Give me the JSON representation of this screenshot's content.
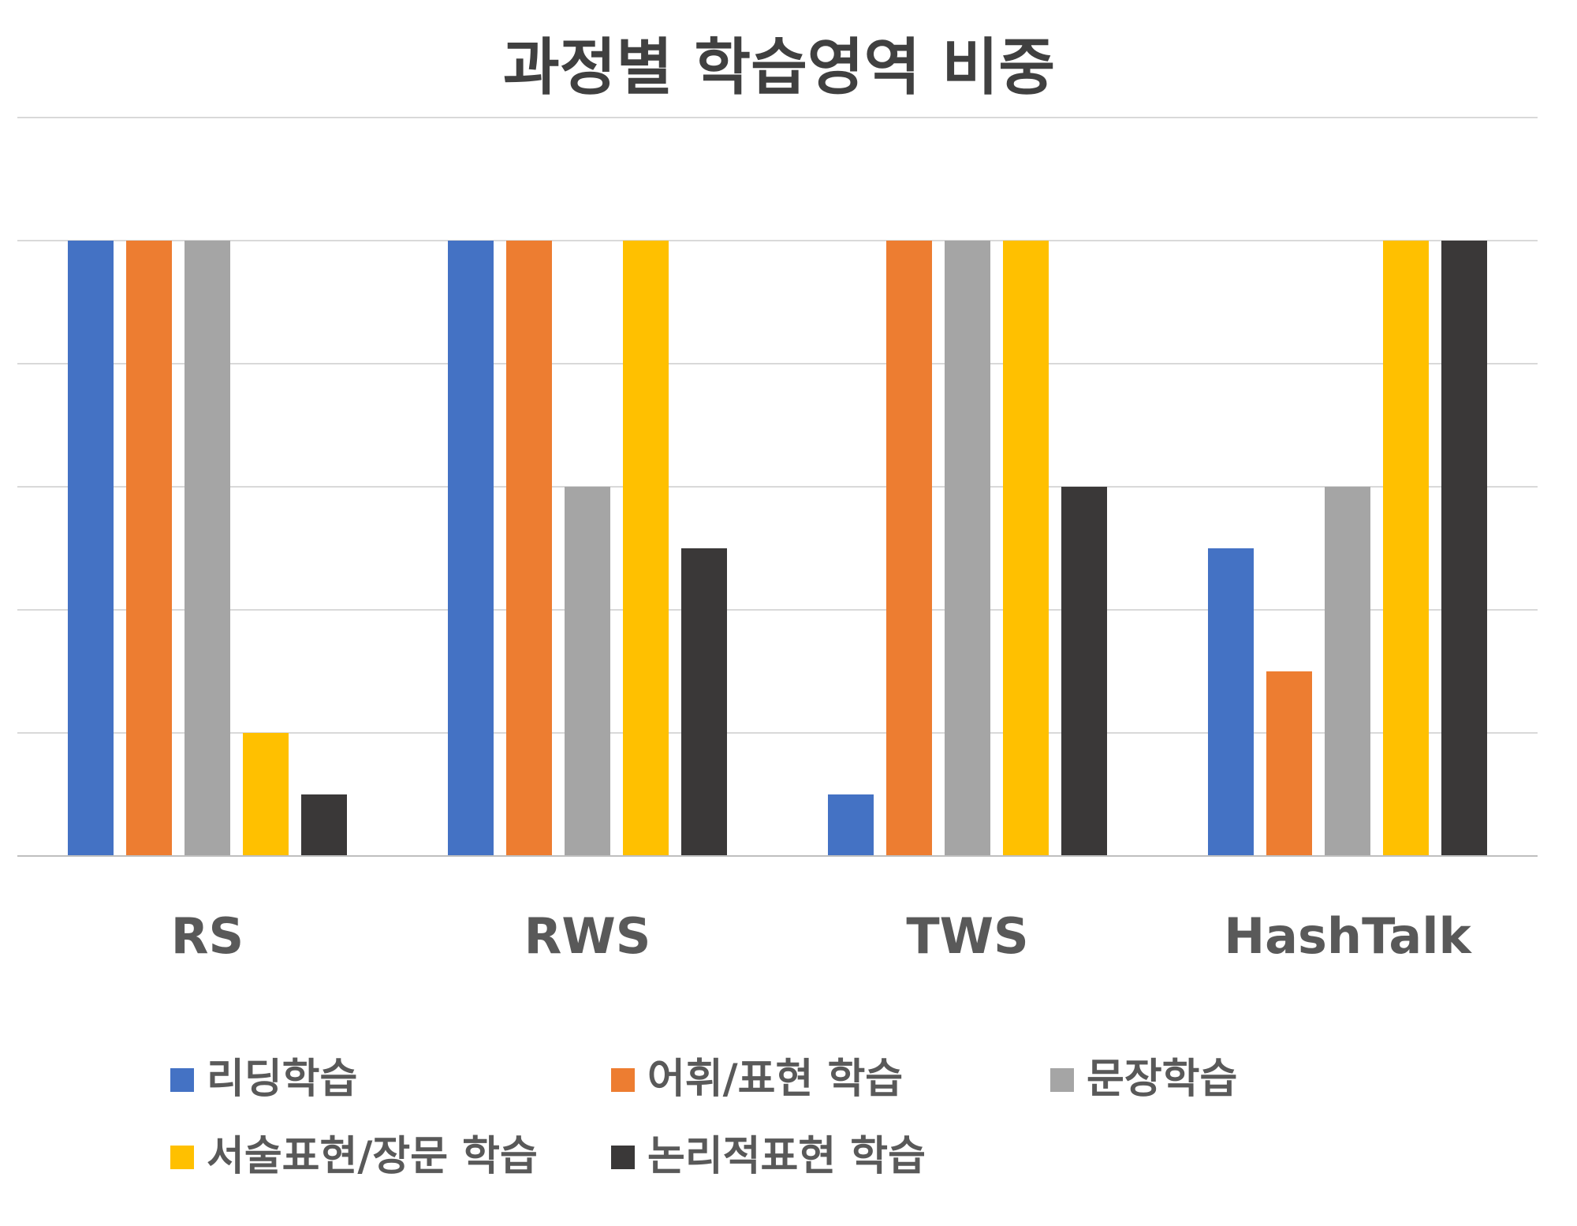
{
  "chart_data": {
    "type": "bar",
    "title": "과정별 학습영역 비중",
    "categories": [
      "RS",
      "RWS",
      "TWS",
      "HashTalk"
    ],
    "ylim": [
      0,
      5
    ],
    "grid": true,
    "legend_position": "bottom",
    "series": [
      {
        "name": "리딩학습",
        "color": "#4472C4",
        "values": [
          5,
          5,
          0.5,
          2.5
        ]
      },
      {
        "name": "어휘/표현 학습",
        "color": "#ED7D31",
        "values": [
          5,
          5,
          5,
          1.5
        ]
      },
      {
        "name": "문장학습",
        "color": "#A5A5A5",
        "values": [
          5,
          3,
          5,
          3
        ]
      },
      {
        "name": "서술표현/장문 학습",
        "color": "#FFC000",
        "values": [
          1,
          5,
          5,
          5
        ]
      },
      {
        "name": "논리적표현 학습",
        "color": "#3A3838",
        "values": [
          0.5,
          2.5,
          3,
          5
        ]
      }
    ]
  }
}
